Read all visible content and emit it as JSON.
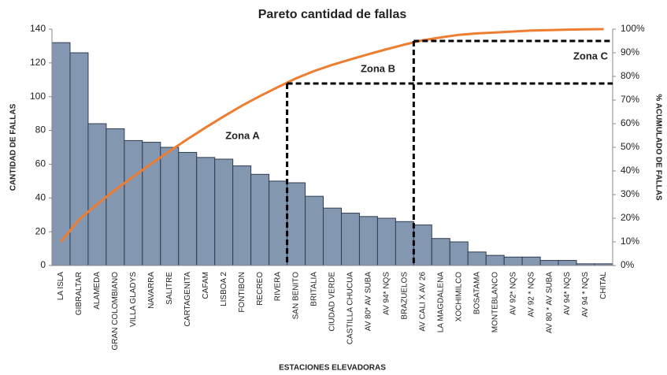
{
  "chart_data": {
    "type": "pareto",
    "title": "Pareto cantidad de fallas",
    "xlabel": "ESTACIONES ELEVADORAS",
    "ylabel": "CANTIDAD DE FALLAS",
    "y2label": "% ACUMULADO DE FALLAS",
    "categories": [
      "LA ISLA",
      "GIBRALTAR",
      "ALAMEDA",
      "GRAN COLOMBIANO",
      "VILLA GLADYS",
      "NAVARRA",
      "SALITRE",
      "CARTAGENITA",
      "CAFAM",
      "LISBOA 2",
      "FONTIBON",
      "RECREO",
      "RIVERA",
      "SAN BENITO",
      "BRITALIA",
      "CIUDAD VERDE",
      "CASTILLA CHUCUA",
      "AV 80* AV SUBA",
      "AV 94*  NQS",
      "BRAZUELOS",
      "AV CALI X AV 26",
      "LA MAGDALENA",
      "XOCHIMILCO",
      "BOSATAMA",
      "MONTEBLANCO",
      "AV 92*  NQS",
      "AV 92 * NQS",
      "AV 80 * AV SUBA",
      "AV 94* NQS",
      "AV 94 * NQS",
      "CHITAL"
    ],
    "series": [
      {
        "name": "CANTIDAD DE FALLAS",
        "color": "#8497b0",
        "values": [
          132,
          126,
          84,
          81,
          74,
          73,
          70,
          67,
          64,
          63,
          59,
          54,
          50,
          49,
          41,
          34,
          31,
          29,
          28,
          26,
          24,
          16,
          14,
          8,
          6,
          5,
          5,
          3,
          3,
          1,
          1
        ]
      },
      {
        "name": "% ACUMULADO DE FALLAS",
        "color": "#ed7d31",
        "axis": "y2",
        "values": [
          10.0,
          19.5,
          25.9,
          32.0,
          37.6,
          43.1,
          48.4,
          53.5,
          58.4,
          63.1,
          67.6,
          71.7,
          75.5,
          79.2,
          82.3,
          84.9,
          87.2,
          89.4,
          91.5,
          93.5,
          95.3,
          96.5,
          97.6,
          98.2,
          98.6,
          99.0,
          99.4,
          99.6,
          99.8,
          99.9,
          100
        ]
      }
    ],
    "ylim": [
      0,
      140
    ],
    "yticks": [
      0,
      20,
      40,
      60,
      80,
      100,
      120,
      140
    ],
    "y2lim": [
      0,
      100
    ],
    "y2ticks": [
      {
        "value": 0,
        "label": "0%"
      },
      {
        "value": 10,
        "label": "10%"
      },
      {
        "value": 20,
        "label": "20%"
      },
      {
        "value": 30,
        "label": "30%"
      },
      {
        "value": 40,
        "label": "40%"
      },
      {
        "value": 50,
        "label": "50%"
      },
      {
        "value": 60,
        "label": "60%"
      },
      {
        "value": 70,
        "label": "70%"
      },
      {
        "value": 80,
        "label": "80%"
      },
      {
        "value": 90,
        "label": "90%"
      },
      {
        "value": 100,
        "label": "100%"
      }
    ],
    "zone_lines": [
      {
        "category_index": 13,
        "value": 77
      },
      {
        "category_index": 20,
        "value": 95
      }
    ],
    "zones": [
      "Zona A",
      "Zona B",
      "Zona C"
    ]
  }
}
